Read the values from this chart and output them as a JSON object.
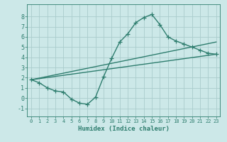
{
  "xlabel": "Humidex (Indice chaleur)",
  "ylabel": "",
  "background_color": "#cce8e8",
  "grid_color": "#aacccc",
  "line_color": "#2e7d6e",
  "xlim": [
    -0.5,
    23.5
  ],
  "ylim": [
    -1.8,
    9.2
  ],
  "xticks": [
    0,
    1,
    2,
    3,
    4,
    5,
    6,
    7,
    8,
    9,
    10,
    11,
    12,
    13,
    14,
    15,
    16,
    17,
    18,
    19,
    20,
    21,
    22,
    23
  ],
  "yticks": [
    -1,
    0,
    1,
    2,
    3,
    4,
    5,
    6,
    7,
    8
  ],
  "curve1_x": [
    0,
    1,
    2,
    3,
    4,
    5,
    6,
    7,
    8,
    9,
    10,
    11,
    12,
    13,
    14,
    15,
    16,
    17,
    18,
    19,
    20,
    21,
    22,
    23
  ],
  "curve1_y": [
    1.8,
    1.5,
    1.0,
    0.7,
    0.6,
    -0.1,
    -0.5,
    -0.6,
    0.1,
    2.1,
    3.9,
    5.5,
    6.3,
    7.4,
    7.9,
    8.2,
    7.2,
    6.0,
    5.6,
    5.3,
    5.0,
    4.7,
    4.4,
    4.3
  ],
  "line2_x": [
    0,
    23
  ],
  "line2_y": [
    1.8,
    5.5
  ],
  "line3_x": [
    0,
    23
  ],
  "line3_y": [
    1.8,
    4.3
  ],
  "marker": "+",
  "markersize": 4,
  "linewidth": 1.0
}
